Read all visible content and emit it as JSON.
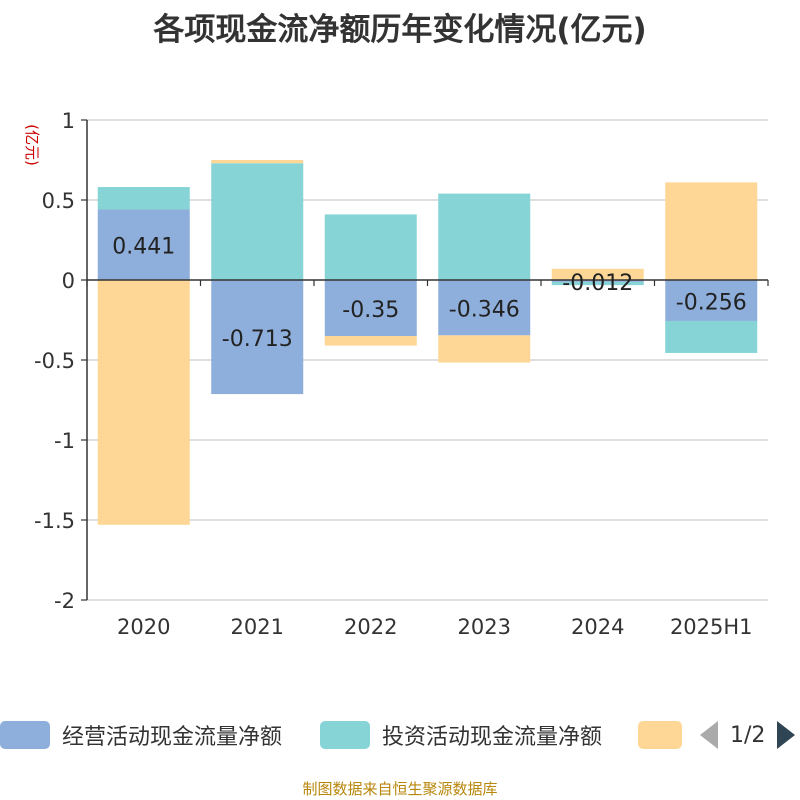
{
  "chart_data": {
    "type": "bar",
    "stacked": true,
    "title": "各项现金流净额历年变化情况(亿元)",
    "ylabel": "(亿元)",
    "ylim": [
      -2,
      1
    ],
    "yticks": [
      1,
      0.5,
      0,
      -0.5,
      -1,
      -1.5,
      -2
    ],
    "ytick_labels": [
      "1",
      "0.5",
      "0",
      "-0.5",
      "-1",
      "-1.5",
      "-2"
    ],
    "grid": true,
    "categories": [
      "2020",
      "2021",
      "2022",
      "2023",
      "2024",
      "2025H1"
    ],
    "series": [
      {
        "name": "经营活动现金流量净额",
        "color": "#8eaedb",
        "values": [
          0.441,
          -0.713,
          -0.35,
          -0.346,
          -0.012,
          -0.256
        ],
        "labels": [
          "0.441",
          "-0.713",
          "-0.35",
          "-0.346",
          "-0.012",
          "-0.256"
        ]
      },
      {
        "name": "投资活动现金流量净额",
        "color": "#86d4d6",
        "values": [
          0.14,
          0.73,
          0.41,
          0.54,
          -0.02,
          -0.2
        ]
      },
      {
        "name": "",
        "color": "#fed797",
        "values": [
          -1.53,
          0.02,
          -0.06,
          -0.17,
          0.07,
          0.61
        ]
      }
    ]
  },
  "legend": {
    "items": [
      {
        "label": "经营活动现金流量净额",
        "color": "#8eaedb"
      },
      {
        "label": "投资活动现金流量净额",
        "color": "#86d4d6"
      },
      {
        "label": "",
        "color": "#fed797"
      }
    ],
    "page": "1/2"
  },
  "source": "制图数据来自恒生聚源数据库"
}
